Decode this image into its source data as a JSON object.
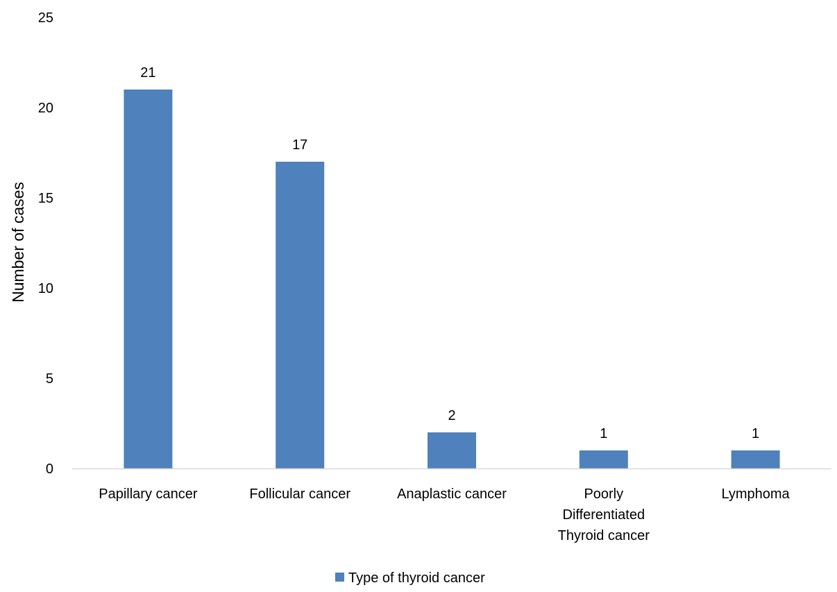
{
  "chart_data": {
    "type": "bar",
    "categories": [
      [
        "Papillary cancer"
      ],
      [
        "Follicular cancer"
      ],
      [
        "Anaplastic cancer"
      ],
      [
        "Poorly",
        "Differentiated",
        "Thyroid cancer"
      ],
      [
        "Lymphoma"
      ]
    ],
    "series": [
      {
        "name": "Type of thyroid cancer",
        "values": [
          21,
          17,
          2,
          1,
          1
        ]
      }
    ],
    "data_labels": [
      "21",
      "17",
      "2",
      "1",
      "1"
    ],
    "title": "",
    "xlabel": "",
    "ylabel": "Number of cases",
    "ylim": [
      0,
      25
    ],
    "yticks": [
      0,
      5,
      10,
      15,
      20,
      25
    ],
    "grid": false,
    "legend_position": "bottom",
    "bar_color": "#4f81bd",
    "axis_color": "#d9d9d9"
  }
}
